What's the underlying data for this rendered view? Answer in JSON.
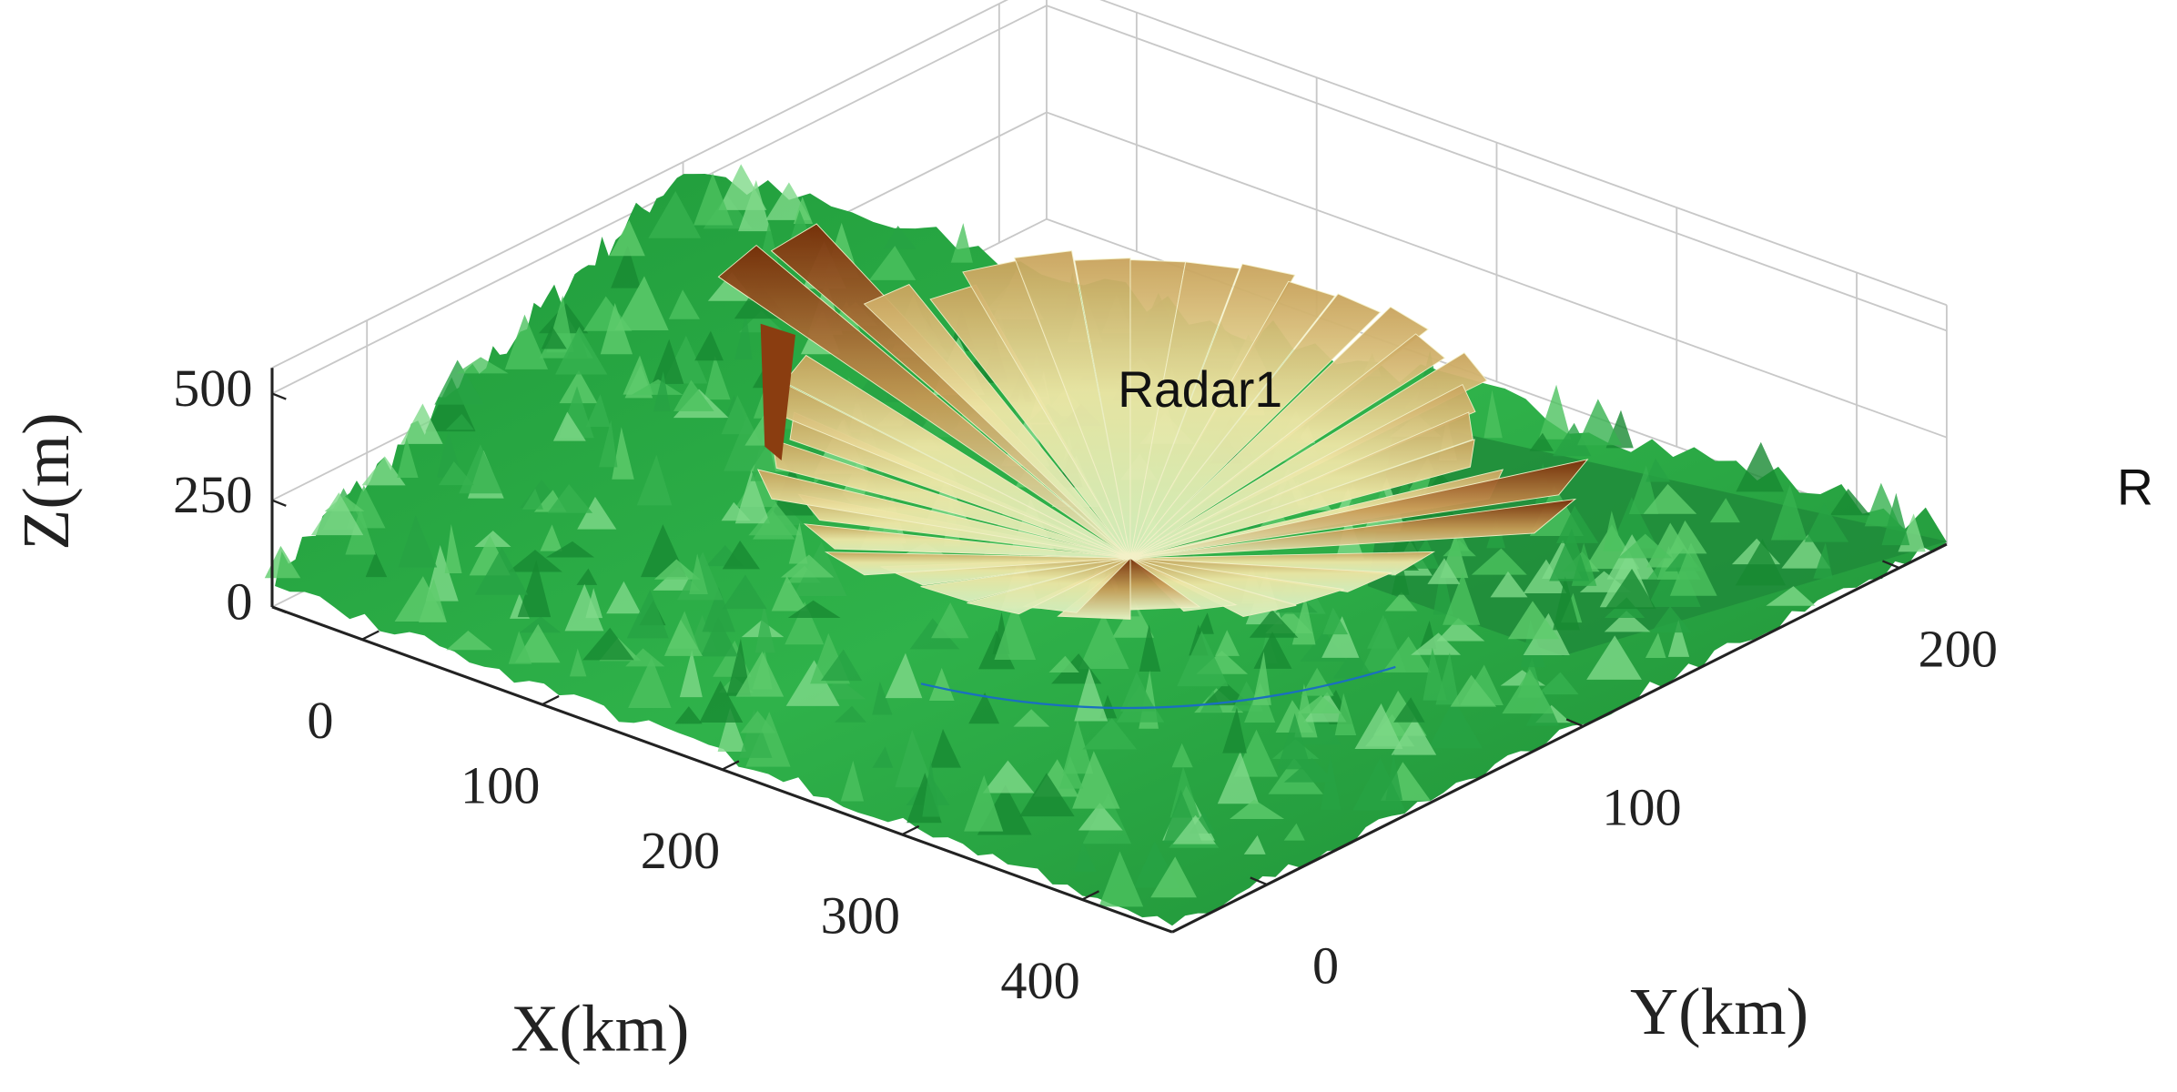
{
  "chart_data": {
    "type": "surface3d",
    "xlabel": "X(km)",
    "ylabel": "Y(km)",
    "zlabel": "Z(m)",
    "annotations": [
      "Radar1",
      "R"
    ],
    "xlim": [
      -50,
      450
    ],
    "ylim": [
      -30,
      215
    ],
    "zlim": [
      0,
      560
    ],
    "xticks": [
      0,
      100,
      200,
      300,
      400
    ],
    "yticks": [
      0,
      100,
      200
    ],
    "zticks": [
      0,
      250,
      500
    ],
    "grid": true
  }
}
